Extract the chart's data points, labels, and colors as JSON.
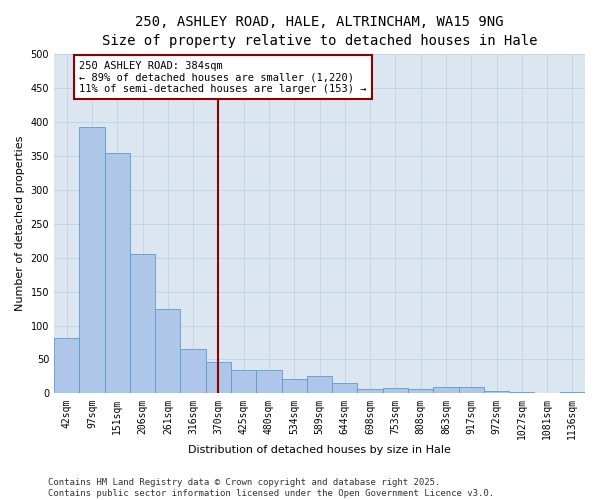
{
  "title_line1": "250, ASHLEY ROAD, HALE, ALTRINCHAM, WA15 9NG",
  "title_line2": "Size of property relative to detached houses in Hale",
  "xlabel": "Distribution of detached houses by size in Hale",
  "ylabel": "Number of detached properties",
  "bar_labels": [
    "42sqm",
    "97sqm",
    "151sqm",
    "206sqm",
    "261sqm",
    "316sqm",
    "370sqm",
    "425sqm",
    "480sqm",
    "534sqm",
    "589sqm",
    "644sqm",
    "698sqm",
    "753sqm",
    "808sqm",
    "863sqm",
    "917sqm",
    "972sqm",
    "1027sqm",
    "1081sqm",
    "1136sqm"
  ],
  "bar_values": [
    82,
    393,
    354,
    205,
    125,
    65,
    46,
    34,
    34,
    21,
    25,
    15,
    6,
    8,
    6,
    10,
    10,
    3,
    2,
    1,
    2
  ],
  "bar_color": "#aec6e8",
  "bar_edge_color": "#5b9bd5",
  "vline_color": "#8b0000",
  "annotation_text": "250 ASHLEY ROAD: 384sqm\n← 89% of detached houses are smaller (1,220)\n11% of semi-detached houses are larger (153) →",
  "annotation_box_color": "#ffffff",
  "annotation_box_edge_color": "#8b0000",
  "ylim": [
    0,
    500
  ],
  "yticks": [
    0,
    50,
    100,
    150,
    200,
    250,
    300,
    350,
    400,
    450,
    500
  ],
  "grid_color": "#c5d5e5",
  "bg_color": "#dce6f0",
  "footer_line1": "Contains HM Land Registry data © Crown copyright and database right 2025.",
  "footer_line2": "Contains public sector information licensed under the Open Government Licence v3.0.",
  "title_fontsize": 10,
  "axis_label_fontsize": 8,
  "tick_fontsize": 7,
  "annotation_fontsize": 7.5,
  "footer_fontsize": 6.5
}
